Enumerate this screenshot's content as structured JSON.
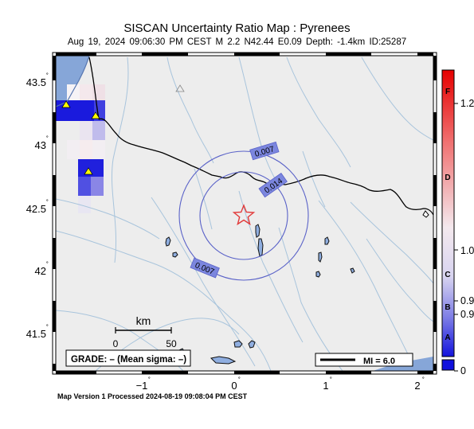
{
  "header": {
    "title": "SISCAN Uncertainty Ratio Map : Pyrenees",
    "subtitle": "Aug 19, 2024 09:06:30 PM CEST   M 2.2   N42.44 E0.09   Depth: -1.4km   ID:25287"
  },
  "map": {
    "lat_ticks": [
      "43.5",
      "43",
      "42.5",
      "42",
      "41.5"
    ],
    "lon_ticks": [
      "−1",
      "0",
      "1",
      "2"
    ],
    "degree_mark": "˚",
    "contour_labels": [
      "0.007",
      "0.014",
      "0.007"
    ],
    "scale_bar": {
      "unit": "km",
      "tick_start": "0",
      "tick_end": "50"
    },
    "grade_box": "GRADE: – (Mean sigma: –)",
    "mi_legend": "MI = 6.0",
    "colors": {
      "land": "#ededed",
      "sea": "#86a6d8",
      "rivers": "#a8c4dc",
      "border": "#000000",
      "epicenter_star": "#e23a3a",
      "contour": "#5a62c8",
      "contour_label_bg": "#7b86de",
      "station_triangle": "#ffff00"
    }
  },
  "colorbar": {
    "letters": [
      "F",
      "D",
      "C",
      "B",
      "A"
    ],
    "values": [
      "1.2",
      "1.0",
      "0.9",
      "0.9",
      "0"
    ],
    "colors": {
      "top": "#e60000",
      "middle": "#f4e9ee",
      "bottom": "#1010dd"
    }
  },
  "footer": {
    "text": "Map Version 1 Processed 2024-08-19 09:08:04 PM CEST"
  }
}
